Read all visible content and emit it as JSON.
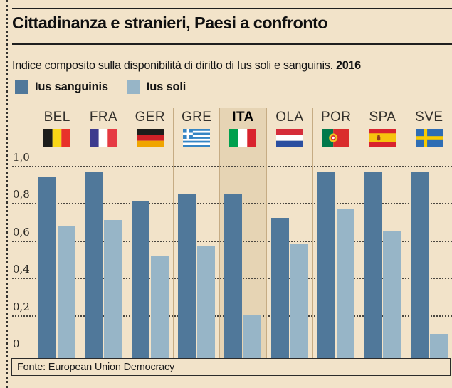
{
  "header": {
    "title": "Cittadinanza e stranieri, Paesi a confronto",
    "subtitle": "Indice composito sulla disponibilità di diritto di Ius soli e sanguinis.",
    "year": "2016"
  },
  "legend": {
    "items": [
      {
        "label": "Ius sanguinis",
        "color": "#50789a"
      },
      {
        "label": "Ius soli",
        "color": "#97b5c7"
      }
    ]
  },
  "source": {
    "text": "Fonte: European Union Democracy"
  },
  "colors": {
    "background": "#f2e3c9",
    "highlight_band": "#e6d4b4",
    "ius_sanguinis": "#50789a",
    "ius_soli": "#97b5c7",
    "grid_dots": "#4a463f",
    "column_separator": "#c6ac84",
    "rule": "#1f1f1f"
  },
  "chart_data": {
    "type": "bar",
    "title": "Indice composito sulla disponibilità di diritto di Ius soli e sanguinis. 2016",
    "categories": [
      "BEL",
      "FRA",
      "GER",
      "GRE",
      "ITA",
      "OLA",
      "POR",
      "SPA",
      "SVE"
    ],
    "flags": [
      "belgium",
      "france",
      "germany",
      "greece",
      "italy",
      "netherlands",
      "portugal",
      "spain",
      "sweden"
    ],
    "highlighted_category": "ITA",
    "series": [
      {
        "name": "Ius sanguinis",
        "color": "#50789a",
        "values": [
          0.94,
          0.97,
          0.81,
          0.85,
          0.85,
          0.72,
          0.97,
          0.97,
          0.97
        ]
      },
      {
        "name": "Ius soli",
        "color": "#97b5c7",
        "values": [
          0.68,
          0.71,
          0.52,
          0.57,
          0.2,
          0.58,
          0.77,
          0.65,
          0.1
        ]
      }
    ],
    "ylim": [
      0,
      1.0
    ],
    "yticks": [
      {
        "label": "1,0",
        "value": 1.0
      },
      {
        "label": "0,8",
        "value": 0.8
      },
      {
        "label": "0,6",
        "value": 0.6
      },
      {
        "label": "0,4",
        "value": 0.4
      },
      {
        "label": "0,2",
        "value": 0.2
      },
      {
        "label": "0",
        "value": 0
      }
    ],
    "grid": "horizontal-dotted",
    "legend_position": "top-left"
  }
}
